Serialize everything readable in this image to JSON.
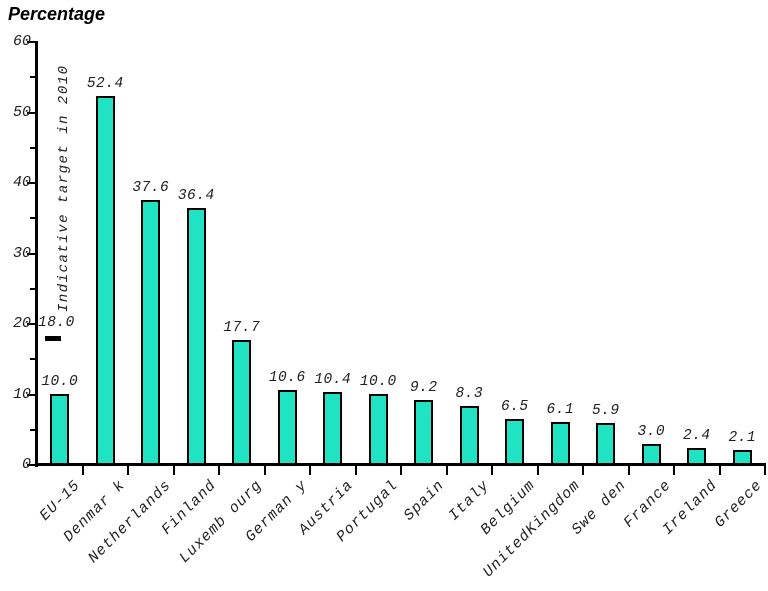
{
  "chart_data": {
    "type": "bar",
    "title": "Percentage",
    "categories": [
      "EU-15",
      "Denmar k",
      "Netherlands",
      "Finland",
      "Luxemb ourg",
      "German y",
      "Austria",
      "Portugal",
      "Spain",
      "Italy",
      "Belgium",
      "UnitedKingdom",
      "Swe den",
      "France",
      "Ireland",
      "Greece"
    ],
    "values": [
      10.0,
      52.4,
      37.6,
      36.4,
      17.7,
      10.6,
      10.4,
      10.0,
      9.2,
      8.3,
      6.5,
      6.1,
      5.9,
      3.0,
      2.4,
      2.1
    ],
    "value_labels": [
      "10.0",
      "52.4",
      "37.6",
      "36.4",
      "17.7",
      "10.6",
      "10.4",
      "10.0",
      "9.2",
      "8.3",
      "6.5",
      "6.1",
      "5.9",
      "3.0",
      "2.4",
      "2.1"
    ],
    "ylabel": "Percentage",
    "ylim": [
      0,
      60
    ],
    "y_major_ticks": [
      0,
      10,
      20,
      30,
      40,
      50,
      60
    ],
    "y_minor_ticks": [
      5,
      15,
      25,
      35,
      45,
      55
    ],
    "grid": false,
    "legend": "none",
    "annotation": {
      "label": "Indicative target in 2010",
      "value": 18,
      "value_label": "18.0",
      "category_index": 0
    },
    "colors": {
      "bar_fill": "#20E3C3",
      "bar_border": "#000000",
      "axis": "#000000",
      "text": "#1f1f1f"
    }
  }
}
